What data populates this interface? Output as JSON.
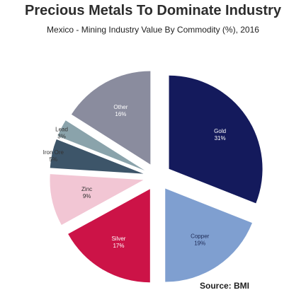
{
  "title": "Precious Metals To Dominate Industry",
  "subtitle": "Mexico - Mining Industry Value By Commodity (%), 2016",
  "source": "Source: BMI",
  "chart_data": {
    "type": "pie",
    "title": "Precious Metals To Dominate Industry",
    "subtitle": "Mexico - Mining Industry Value By Commodity (%), 2016",
    "style": "exploded",
    "slices": [
      {
        "label": "Gold",
        "value": 31,
        "display": "31%",
        "color": "#141a5c",
        "text_color": "#ffffff",
        "label_outside": false
      },
      {
        "label": "Copper",
        "value": 19,
        "display": "19%",
        "color": "#7f9fd0",
        "text_color": "#1e2a55",
        "label_outside": false
      },
      {
        "label": "Silver",
        "value": 17,
        "display": "17%",
        "color": "#cc1347",
        "text_color": "#ffffff",
        "label_outside": false
      },
      {
        "label": "Zinc",
        "value": 9,
        "display": "9%",
        "color": "#f2c6d4",
        "text_color": "#333333",
        "label_outside": false
      },
      {
        "label": "Iron Ore",
        "value": 5,
        "display": "5%",
        "color": "#3d5569",
        "text_color": "#333333",
        "label_outside": true
      },
      {
        "label": "Lead",
        "value": 3,
        "display": "3%",
        "color": "#8aa3ab",
        "text_color": "#333333",
        "label_outside": true
      },
      {
        "label": "Other",
        "value": 16,
        "display": "16%",
        "color": "#8a8c9e",
        "text_color": "#ffffff",
        "label_outside": false
      }
    ]
  }
}
